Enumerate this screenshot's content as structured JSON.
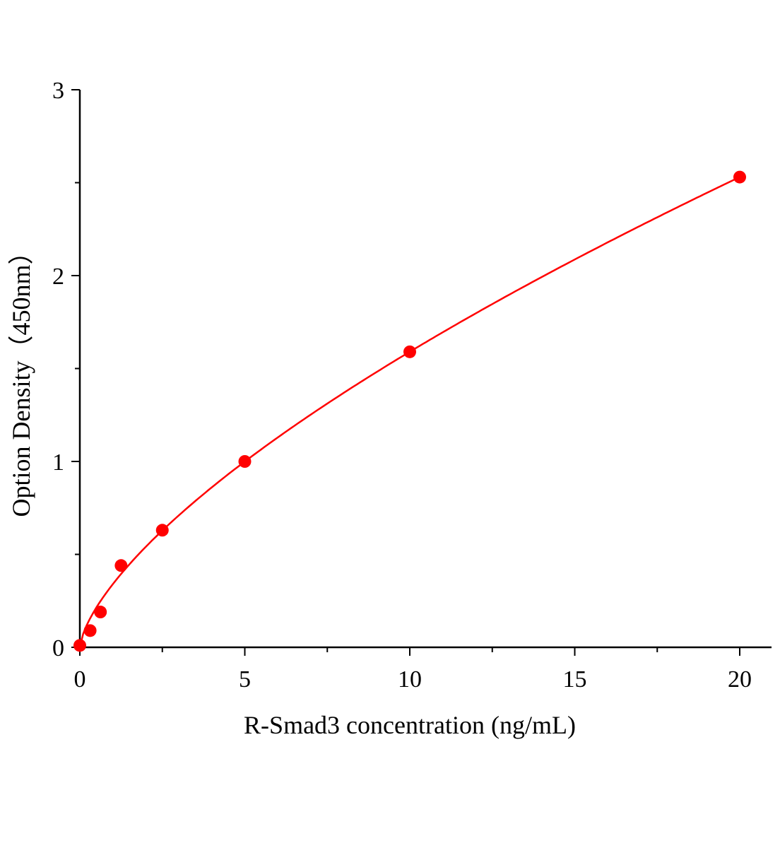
{
  "chart_data": {
    "type": "scatter",
    "title": "",
    "xlabel": "R-Smad3 concentration (ng/mL)",
    "ylabel": "Option Density（450nm）",
    "xlim": [
      0,
      20.9
    ],
    "ylim": [
      0,
      3
    ],
    "xticks": [
      0,
      5,
      10,
      15,
      20
    ],
    "yticks": [
      0,
      1,
      2,
      3
    ],
    "grid": false,
    "legend": "none",
    "color": "#ff0000",
    "series": [
      {
        "x": [
          0,
          0.3125,
          0.625,
          1.25,
          2.5,
          5,
          10,
          20
        ],
        "y": [
          0.01,
          0.09,
          0.19,
          0.44,
          0.63,
          1.0,
          1.59,
          2.53
        ]
      }
    ],
    "fit_curve": true
  }
}
